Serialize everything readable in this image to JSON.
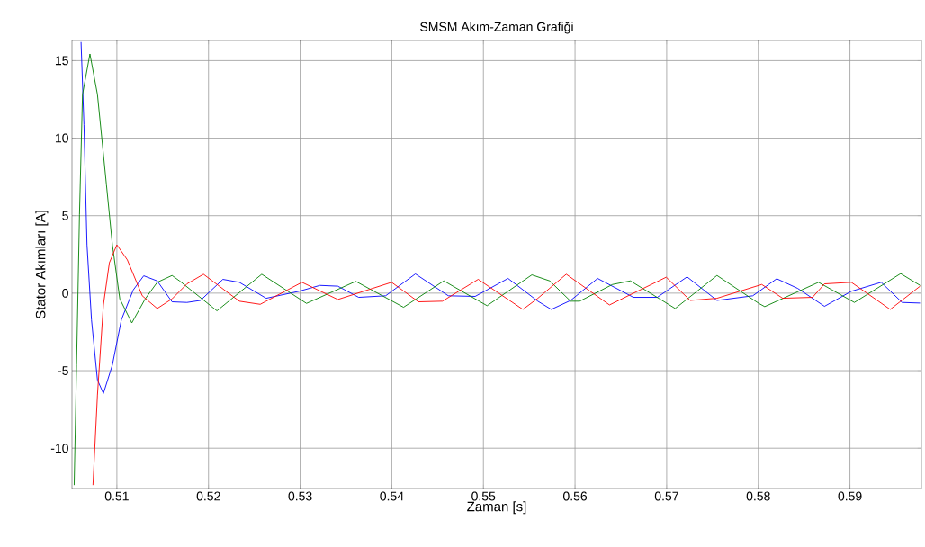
{
  "chart_data": {
    "type": "line",
    "title": "SMSM Akım-Zaman Grafiği",
    "xlabel": "Zaman [s]",
    "ylabel": "Stator Akımları [A]",
    "xlim": [
      0.5051,
      0.5978
    ],
    "ylim": [
      -12.6,
      16.3
    ],
    "xticks": [
      0.51,
      0.52,
      0.53,
      0.54,
      0.55,
      0.56,
      0.57,
      0.58,
      0.59
    ],
    "yticks": [
      -10,
      -5,
      0,
      5,
      10,
      15
    ],
    "grid": true,
    "line_style": "solid",
    "series": [
      {
        "color": "#0000ff",
        "x": [
          0.50609,
          0.50641,
          0.50674,
          0.50723,
          0.50788,
          0.50853,
          0.50951,
          0.51049,
          0.51179,
          0.51293,
          0.5144,
          0.51602,
          0.51765,
          0.51912,
          0.52157,
          0.52336,
          0.52629,
          0.52987,
          0.53216,
          0.53411,
          0.53639,
          0.53933,
          0.54258,
          0.54617,
          0.5491,
          0.55269,
          0.55594,
          0.55741,
          0.55952,
          0.56246,
          0.56637,
          0.56897,
          0.57223,
          0.57549,
          0.5794,
          0.58201,
          0.58429,
          0.58722,
          0.59015,
          0.59341,
          0.59569,
          0.59765
        ],
        "values": [
          16.2,
          10.87,
          3.12,
          -1.72,
          -5.6,
          -6.47,
          -4.63,
          -1.72,
          0.21,
          1.12,
          0.79,
          -0.56,
          -0.6,
          -0.47,
          0.89,
          0.7,
          -0.33,
          0.12,
          0.5,
          0.45,
          -0.27,
          -0.17,
          1.24,
          -0.17,
          -0.21,
          0.95,
          -0.52,
          -1.05,
          -0.47,
          0.95,
          -0.27,
          -0.27,
          1.05,
          -0.47,
          -0.17,
          0.93,
          0.31,
          -0.85,
          0.12,
          0.7,
          -0.6,
          -0.64
        ]
      },
      {
        "color": "#008000",
        "x": [
          0.50534,
          0.5056,
          0.50592,
          0.50625,
          0.50706,
          0.50788,
          0.50886,
          0.50951,
          0.51032,
          0.51163,
          0.51309,
          0.5144,
          0.51602,
          0.51684,
          0.52092,
          0.52581,
          0.53069,
          0.53607,
          0.54128,
          0.54568,
          0.5504,
          0.55529,
          0.55724,
          0.55952,
          0.5605,
          0.56409,
          0.56604,
          0.57093,
          0.57549,
          0.58005,
          0.5807,
          0.58657,
          0.59048,
          0.59553,
          0.59765
        ],
        "values": [
          -12.38,
          -4.63,
          5.06,
          12.81,
          15.43,
          12.81,
          7.0,
          3.12,
          -0.37,
          -1.92,
          -0.37,
          0.7,
          1.14,
          0.79,
          -1.14,
          1.22,
          -0.66,
          0.76,
          -0.91,
          0.79,
          -0.81,
          1.18,
          0.79,
          -0.52,
          -0.52,
          0.56,
          0.79,
          -0.99,
          1.14,
          -0.66,
          -0.87,
          0.7,
          -0.6,
          1.26,
          0.5
        ]
      },
      {
        "color": "#ff0000",
        "x": [
          0.50739,
          0.50788,
          0.50853,
          0.50918,
          0.51,
          0.51114,
          0.51277,
          0.5144,
          0.51602,
          0.51765,
          0.51945,
          0.52336,
          0.52564,
          0.5302,
          0.53411,
          0.53998,
          0.54291,
          0.54552,
          0.54943,
          0.55431,
          0.55594,
          0.55904,
          0.56376,
          0.56995,
          0.57256,
          0.57549,
          0.58038,
          0.58266,
          0.58592,
          0.58722,
          0.59015,
          0.59439,
          0.59765
        ],
        "values": [
          -12.38,
          -6.57,
          -0.76,
          1.96,
          3.12,
          2.15,
          -0.17,
          -0.99,
          -0.37,
          0.6,
          1.22,
          -0.52,
          -0.72,
          0.7,
          -0.41,
          0.7,
          -0.56,
          -0.52,
          0.89,
          -1.05,
          -0.33,
          1.22,
          -0.76,
          1.03,
          -0.47,
          -0.33,
          0.56,
          -0.33,
          -0.27,
          0.6,
          0.7,
          -1.05,
          0.45
        ]
      }
    ]
  }
}
